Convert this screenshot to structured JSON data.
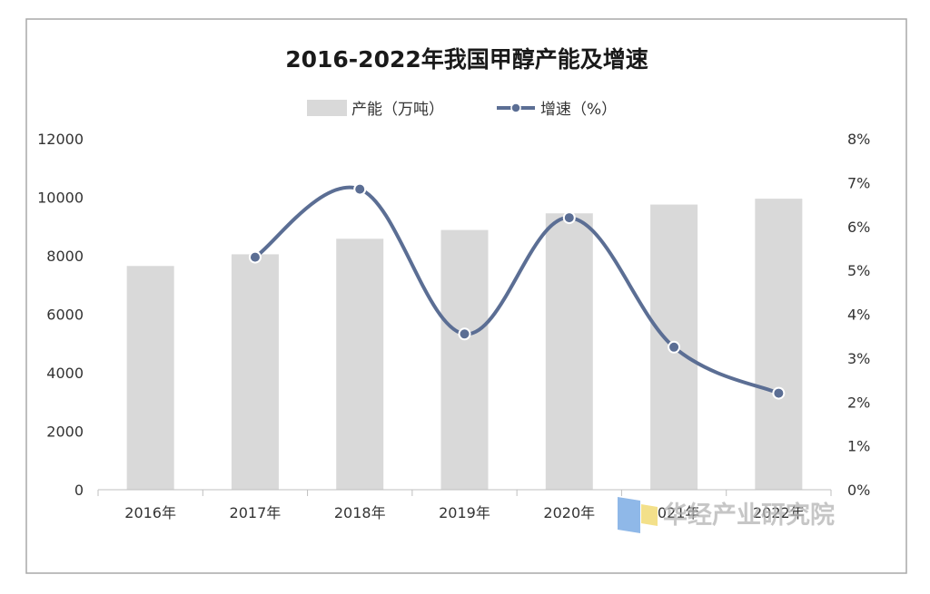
{
  "chart_data": {
    "type": "bar",
    "title": "2016-2022年我国甲醇产能及增速",
    "categories": [
      "2016年",
      "2017年",
      "2018年",
      "2019年",
      "2020年",
      "2021年",
      "2022年"
    ],
    "series": [
      {
        "name": "产能（万吨）",
        "type": "bar",
        "axis": "left",
        "values": [
          7650,
          8050,
          8580,
          8880,
          9450,
          9750,
          9950
        ]
      },
      {
        "name": "增速（%）",
        "type": "line",
        "axis": "right",
        "values": [
          null,
          5.3,
          6.85,
          3.55,
          6.2,
          3.25,
          2.2
        ]
      }
    ],
    "y_left": {
      "ylim": [
        0,
        12000
      ],
      "ticks": [
        "0",
        "2000",
        "4000",
        "6000",
        "8000",
        "10000",
        "12000"
      ]
    },
    "y_right": {
      "ylim": [
        0,
        8
      ],
      "ticks": [
        "0%",
        "1%",
        "2%",
        "3%",
        "4%",
        "5%",
        "6%",
        "7%",
        "8%"
      ]
    },
    "legend_position": "top-center",
    "grid": false
  },
  "watermark": {
    "text": "华经产业研究院",
    "colors": [
      "#8fb8e8",
      "#f3e08a"
    ]
  },
  "colors": {
    "bar": "#d9d9d9",
    "line": "#5b6e94",
    "marker_fill": "#5b6e94",
    "marker_edge": "#ffffff",
    "text": "#333333",
    "title": "#1a1a1a",
    "frame": "#a8a8a8"
  }
}
